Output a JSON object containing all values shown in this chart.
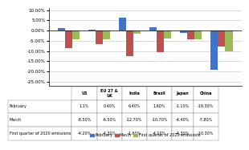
{
  "categories": [
    "US",
    "EU 27 &\nUK",
    "India",
    "Brazil",
    "Japan",
    "China"
  ],
  "february": [
    1.1,
    0.4,
    6.4,
    1.6,
    -1.1,
    -19.3
  ],
  "march": [
    -8.5,
    -6.5,
    -12.7,
    -10.7,
    -4.4,
    -7.8
  ],
  "q1": [
    -4.2,
    -4.3,
    -1.6,
    -4.1,
    -4.3,
    -10.3
  ],
  "colors": {
    "february": "#4472C4",
    "march": "#C0504D",
    "q1": "#9BBB59"
  },
  "ylim": [
    -27,
    11
  ],
  "yticks": [
    10.0,
    5.0,
    0.0,
    -5.0,
    -10.0,
    -15.0,
    -20.0,
    -25.0
  ],
  "col_headers": [
    "US",
    "EU 27 &\nUK",
    "India",
    "Brazil",
    "Japan",
    "China"
  ],
  "row_labels": [
    "February",
    "March",
    "First quarter of 2020 emissions"
  ],
  "row_data": [
    [
      "1.1%",
      "0.40%",
      "6.40%",
      "1.60%",
      "-1.10%",
      "-19.30%"
    ],
    [
      "-8.50%",
      "-6.50%",
      "-12.70%",
      "-10.70%",
      "-4.40%",
      "-7.80%"
    ],
    [
      "-4.20%",
      "-4.30%",
      "-1.60%",
      "-4.10%",
      "-4.30%",
      "-10.30%"
    ]
  ],
  "legend_labels": [
    "February",
    "March",
    "First quarter of 2020 emissions"
  ],
  "bg_color": "#ffffff"
}
